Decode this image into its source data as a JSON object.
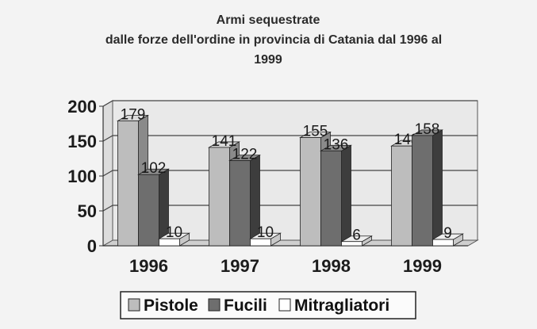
{
  "chart_data": {
    "type": "bar",
    "title_lines": [
      "Armi  sequestrate",
      "dalle forze dell'ordine in provincia di Catania dal 1996 al",
      "1999"
    ],
    "categories": [
      "1996",
      "1997",
      "1998",
      "1999"
    ],
    "series": [
      {
        "name": "Pistole",
        "values": [
          179,
          141,
          155,
          143
        ],
        "color": "#bdbdbd",
        "side_color": "#8a8a8a",
        "top_color": "#dadada"
      },
      {
        "name": "Fucili",
        "values": [
          102,
          122,
          136,
          158
        ],
        "color": "#6e6e6e",
        "side_color": "#3d3d3d",
        "top_color": "#8c8c8c"
      },
      {
        "name": "Mitragliatori",
        "values": [
          10,
          10,
          6,
          9
        ],
        "color": "#ffffff",
        "side_color": "#c8c8c8",
        "top_color": "#ededed"
      }
    ],
    "y_ticks": [
      "0",
      "50",
      "100",
      "150",
      "200"
    ],
    "ylim": [
      0,
      200
    ],
    "grid": true,
    "legend_position": "bottom"
  }
}
